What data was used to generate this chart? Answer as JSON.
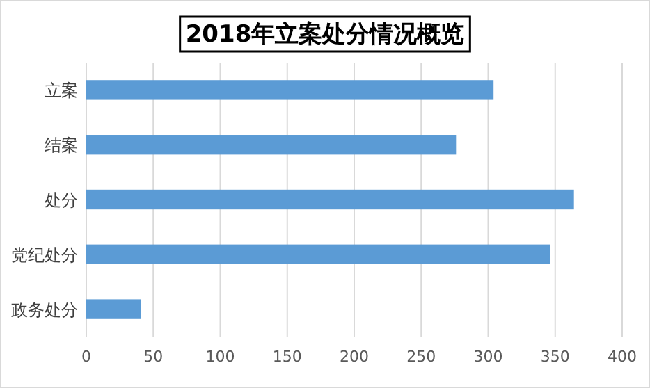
{
  "chart_data": {
    "type": "bar",
    "orientation": "horizontal",
    "title": "2018年立案处分情况概览",
    "categories": [
      "立案",
      "结案",
      "处分",
      "党纪处分",
      "政务处分"
    ],
    "values": [
      304,
      276,
      364,
      346,
      41
    ],
    "color": "#5b9bd5",
    "xlim": [
      0,
      400
    ],
    "xticks": [
      0,
      50,
      100,
      150,
      200,
      250,
      300,
      350,
      400
    ],
    "grid": "x"
  }
}
